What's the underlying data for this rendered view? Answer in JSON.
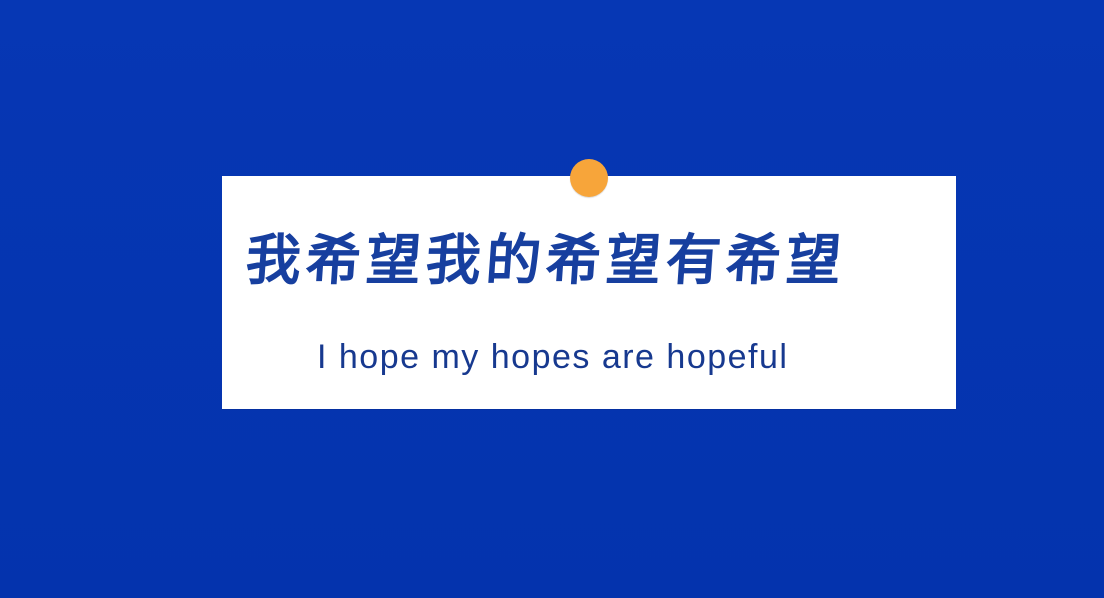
{
  "background_color": "#0536b0",
  "card": {
    "background_color": "#ffffff",
    "pin_color": "#f7a53a",
    "chinese_text": "我希望我的希望有希望",
    "english_text": "I hope my hopes are hopeful",
    "text_color": "#173f9f"
  }
}
